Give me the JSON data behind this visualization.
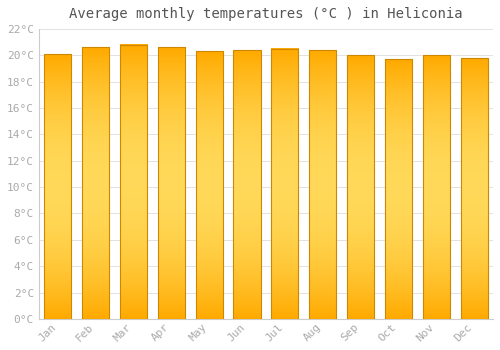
{
  "title": "Average monthly temperatures (°C ) in Heliconia",
  "months": [
    "Jan",
    "Feb",
    "Mar",
    "Apr",
    "May",
    "Jun",
    "Jul",
    "Aug",
    "Sep",
    "Oct",
    "Nov",
    "Dec"
  ],
  "temperatures": [
    20.1,
    20.6,
    20.8,
    20.6,
    20.3,
    20.4,
    20.5,
    20.4,
    20.0,
    19.7,
    20.0,
    19.8
  ],
  "bar_color_center": "#FFAA00",
  "bar_color_edge": "#FFB800",
  "bar_gradient_light": "#FFE066",
  "bar_border_color": "#CC8800",
  "background_color": "#ffffff",
  "plot_bg_color": "#ffffff",
  "grid_color": "#dddddd",
  "ylim": [
    0,
    22
  ],
  "yticks": [
    0,
    2,
    4,
    6,
    8,
    10,
    12,
    14,
    16,
    18,
    20,
    22
  ],
  "title_fontsize": 10,
  "tick_fontsize": 8,
  "tick_color": "#aaaaaa",
  "title_color": "#555555"
}
